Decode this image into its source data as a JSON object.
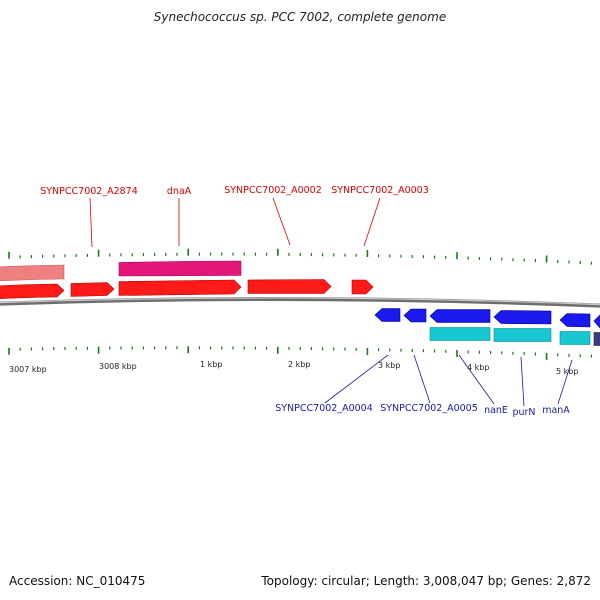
{
  "title": "Synechococcus sp. PCC 7002, complete genome",
  "footer": {
    "accession": "Accession: NC_010475",
    "summary": "Topology: circular; Length: 3,008,047 bp; Genes: 2,872"
  },
  "colors": {
    "forward_gene": "#ff1a1a",
    "forward_gene_pale": "#f08080",
    "forward_cds_alt": "#e6157a",
    "reverse_gene": "#1a1aee",
    "reverse_cds_alt": "#18c8d0",
    "backbone": "#808080",
    "tick": "#1a7a1a",
    "forward_label": "#dd0000",
    "reverse_label": "#1a1aa8"
  },
  "scale_labels": [
    "3007 kbp",
    "3008 kbp",
    "1 kbp",
    "2 kbp",
    "3 kbp",
    "4 kbp",
    "5 kbp"
  ],
  "forward_labels": [
    "SYNPCC7002_A2874",
    "dnaA",
    "SYNPCC7002_A0002",
    "SYNPCC7002_A0003"
  ],
  "reverse_labels": [
    "SYNPCC7002_A0004",
    "SYNPCC7002_A0005",
    "nanE",
    "purN",
    "manA"
  ]
}
